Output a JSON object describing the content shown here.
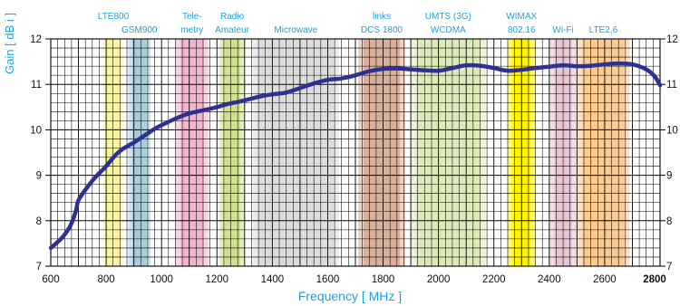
{
  "chart_data": {
    "type": "line",
    "xlabel": "Frequency [ MHz ]",
    "ylabel": "Gain [ dB i ]",
    "xlim": [
      600,
      2800
    ],
    "ylim": [
      7,
      12
    ],
    "x_ticks": [
      600,
      800,
      1000,
      1200,
      1400,
      1600,
      1800,
      2000,
      2200,
      2400,
      2600,
      2800
    ],
    "x_tick_labels": [
      "600",
      "800",
      "1000",
      "1200",
      "1400",
      "1600",
      "1800",
      "2000",
      "2200",
      "2400",
      "2600",
      "2800"
    ],
    "emphasized_x_tick": "2800",
    "y_ticks": [
      7,
      8,
      9,
      10,
      11,
      12
    ],
    "y_tick_labels": [
      "7",
      "8",
      "9",
      "10",
      "11",
      "12"
    ],
    "right_axis_tick_labels": [
      "7",
      "8",
      "9",
      "10",
      "11",
      "12"
    ],
    "grid": true,
    "curve_color": "#2e3192",
    "label_color": "#1aa3dc",
    "bands": [
      {
        "id": "lte800",
        "lines": [
          "LTE800"
        ],
        "start": 790,
        "end": 862,
        "color": "#f7f59a"
      },
      {
        "id": "gsm900",
        "lines": [
          "GSM900"
        ],
        "start": 880,
        "end": 960,
        "color": "#a9cbd9"
      },
      {
        "id": "telemetry",
        "lines": [
          "Tele-",
          "metry"
        ],
        "start": 1050,
        "end": 1170,
        "color": "#f0b3cd"
      },
      {
        "id": "radio",
        "lines": [
          "Radio",
          "Amateur"
        ],
        "start": 1210,
        "end": 1300,
        "color": "#cfe08a"
      },
      {
        "id": "microwave",
        "lines": [
          "Microwave"
        ],
        "start": 1330,
        "end": 1640,
        "color": "#dcdcdc"
      },
      {
        "id": "dcs1800",
        "lines": [
          "links",
          "DCS 1800"
        ],
        "start": 1710,
        "end": 1880,
        "color": "#d9ae98"
      },
      {
        "id": "umts",
        "lines": [
          "UMTS (3G)",
          "WCDMA"
        ],
        "start": 1900,
        "end": 2170,
        "color": "#dceab8"
      },
      {
        "id": "wimax",
        "lines": [
          "WIMAX",
          "802.16"
        ],
        "start": 2250,
        "end": 2350,
        "color": "#fff200"
      },
      {
        "id": "wifi",
        "lines": [
          "Wi-Fi"
        ],
        "start": 2400,
        "end": 2500,
        "color": "#e6c4d2"
      },
      {
        "id": "lte26",
        "lines": [
          "LTE2,6"
        ],
        "start": 2500,
        "end": 2690,
        "color": "#fbc98f"
      }
    ],
    "series": [
      {
        "x": [
          600,
          640,
          670,
          690,
          700,
          730,
          760,
          800,
          830,
          860,
          900,
          940,
          980,
          1020,
          1060,
          1100,
          1150,
          1200,
          1240,
          1280,
          1320,
          1360,
          1400,
          1450,
          1500,
          1550,
          1600,
          1650,
          1700,
          1750,
          1800,
          1850,
          1900,
          1950,
          2000,
          2050,
          2100,
          2150,
          2200,
          2250,
          2300,
          2350,
          2400,
          2450,
          2500,
          2550,
          2600,
          2650,
          2700,
          2750,
          2780,
          2800
        ],
        "y": [
          7.4,
          7.62,
          7.88,
          8.2,
          8.45,
          8.72,
          8.95,
          9.2,
          9.42,
          9.58,
          9.72,
          9.88,
          10.04,
          10.16,
          10.27,
          10.36,
          10.43,
          10.5,
          10.57,
          10.62,
          10.68,
          10.74,
          10.78,
          10.82,
          10.92,
          11.02,
          11.1,
          11.13,
          11.2,
          11.29,
          11.34,
          11.35,
          11.33,
          11.31,
          11.3,
          11.36,
          11.42,
          11.41,
          11.36,
          11.3,
          11.32,
          11.36,
          11.39,
          11.42,
          11.4,
          11.41,
          11.44,
          11.46,
          11.44,
          11.33,
          11.18,
          10.98
        ]
      }
    ]
  }
}
